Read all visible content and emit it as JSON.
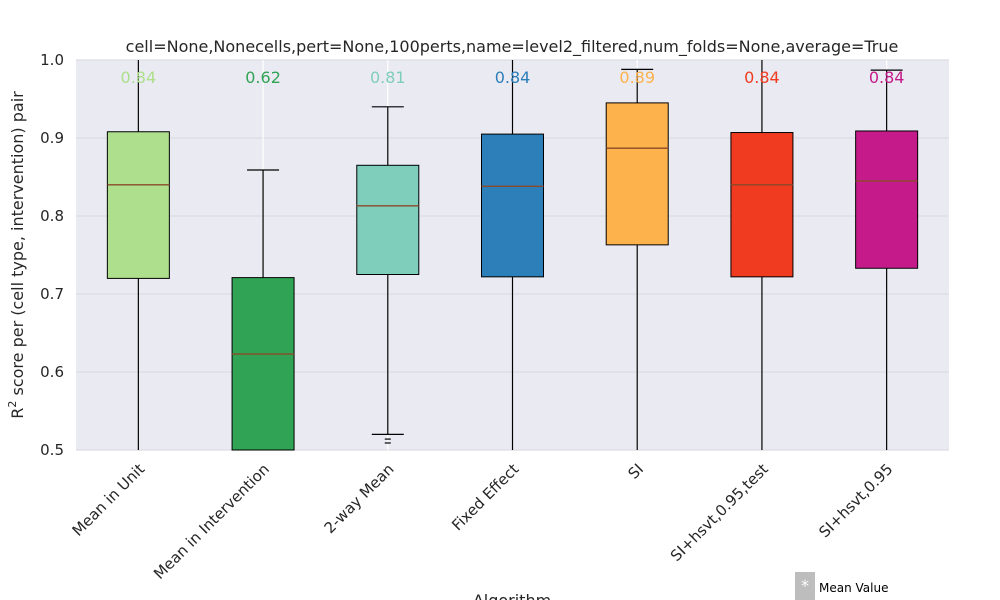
{
  "chart_data": {
    "type": "box",
    "title": "cell=None,Nonecells,pert=None,100perts,name=level2_filtered,num_folds=None,average=True",
    "xlabel": "Algorithm",
    "ylabel_prefix": "R",
    "ylabel_sup": "2",
    "ylabel_rest": " score per (cell type, intervention) pair",
    "ylim": [
      0.5,
      1.0
    ],
    "yticks": [
      "0.5",
      "0.6",
      "0.7",
      "0.8",
      "0.9",
      "1.0"
    ],
    "grid": true,
    "categories": [
      "Mean in Unit",
      "Mean in Intervention",
      "2-way Mean",
      "Fixed Effect",
      "SI",
      "SI+hsvt,0.95,test",
      "SI+hsvt,0.95"
    ],
    "boxes": [
      {
        "q1": 0.72,
        "median": 0.84,
        "q3": 0.908,
        "whisker_low": 0.5,
        "whisker_high": 1.0,
        "mean_label": "0.84",
        "color": "#addf8d",
        "outliers": []
      },
      {
        "q1": 0.5,
        "median": 0.623,
        "q3": 0.721,
        "whisker_low": 0.5,
        "whisker_high": 0.859,
        "mean_label": "0.62",
        "color": "#31a354",
        "outliers": []
      },
      {
        "q1": 0.725,
        "median": 0.813,
        "q3": 0.865,
        "whisker_low": 0.52,
        "whisker_high": 0.94,
        "mean_label": "0.81",
        "color": "#7fcdbb",
        "outliers": [
          0.514,
          0.509
        ]
      },
      {
        "q1": 0.722,
        "median": 0.838,
        "q3": 0.905,
        "whisker_low": 0.5,
        "whisker_high": 1.0,
        "mean_label": "0.84",
        "color": "#2c7fb8",
        "outliers": []
      },
      {
        "q1": 0.763,
        "median": 0.887,
        "q3": 0.945,
        "whisker_low": 0.5,
        "whisker_high": 0.988,
        "mean_label": "0.89",
        "color": "#feb24c",
        "outliers": []
      },
      {
        "q1": 0.722,
        "median": 0.84,
        "q3": 0.907,
        "whisker_low": 0.5,
        "whisker_high": 1.0,
        "mean_label": "0.84",
        "color": "#f03b20",
        "outliers": []
      },
      {
        "q1": 0.733,
        "median": 0.845,
        "q3": 0.909,
        "whisker_low": 0.5,
        "whisker_high": 0.987,
        "mean_label": "0.84",
        "color": "#c51b8a",
        "outliers": []
      }
    ],
    "legend": {
      "marker": "*",
      "label": "Mean Value",
      "position": "bottom-right"
    }
  }
}
